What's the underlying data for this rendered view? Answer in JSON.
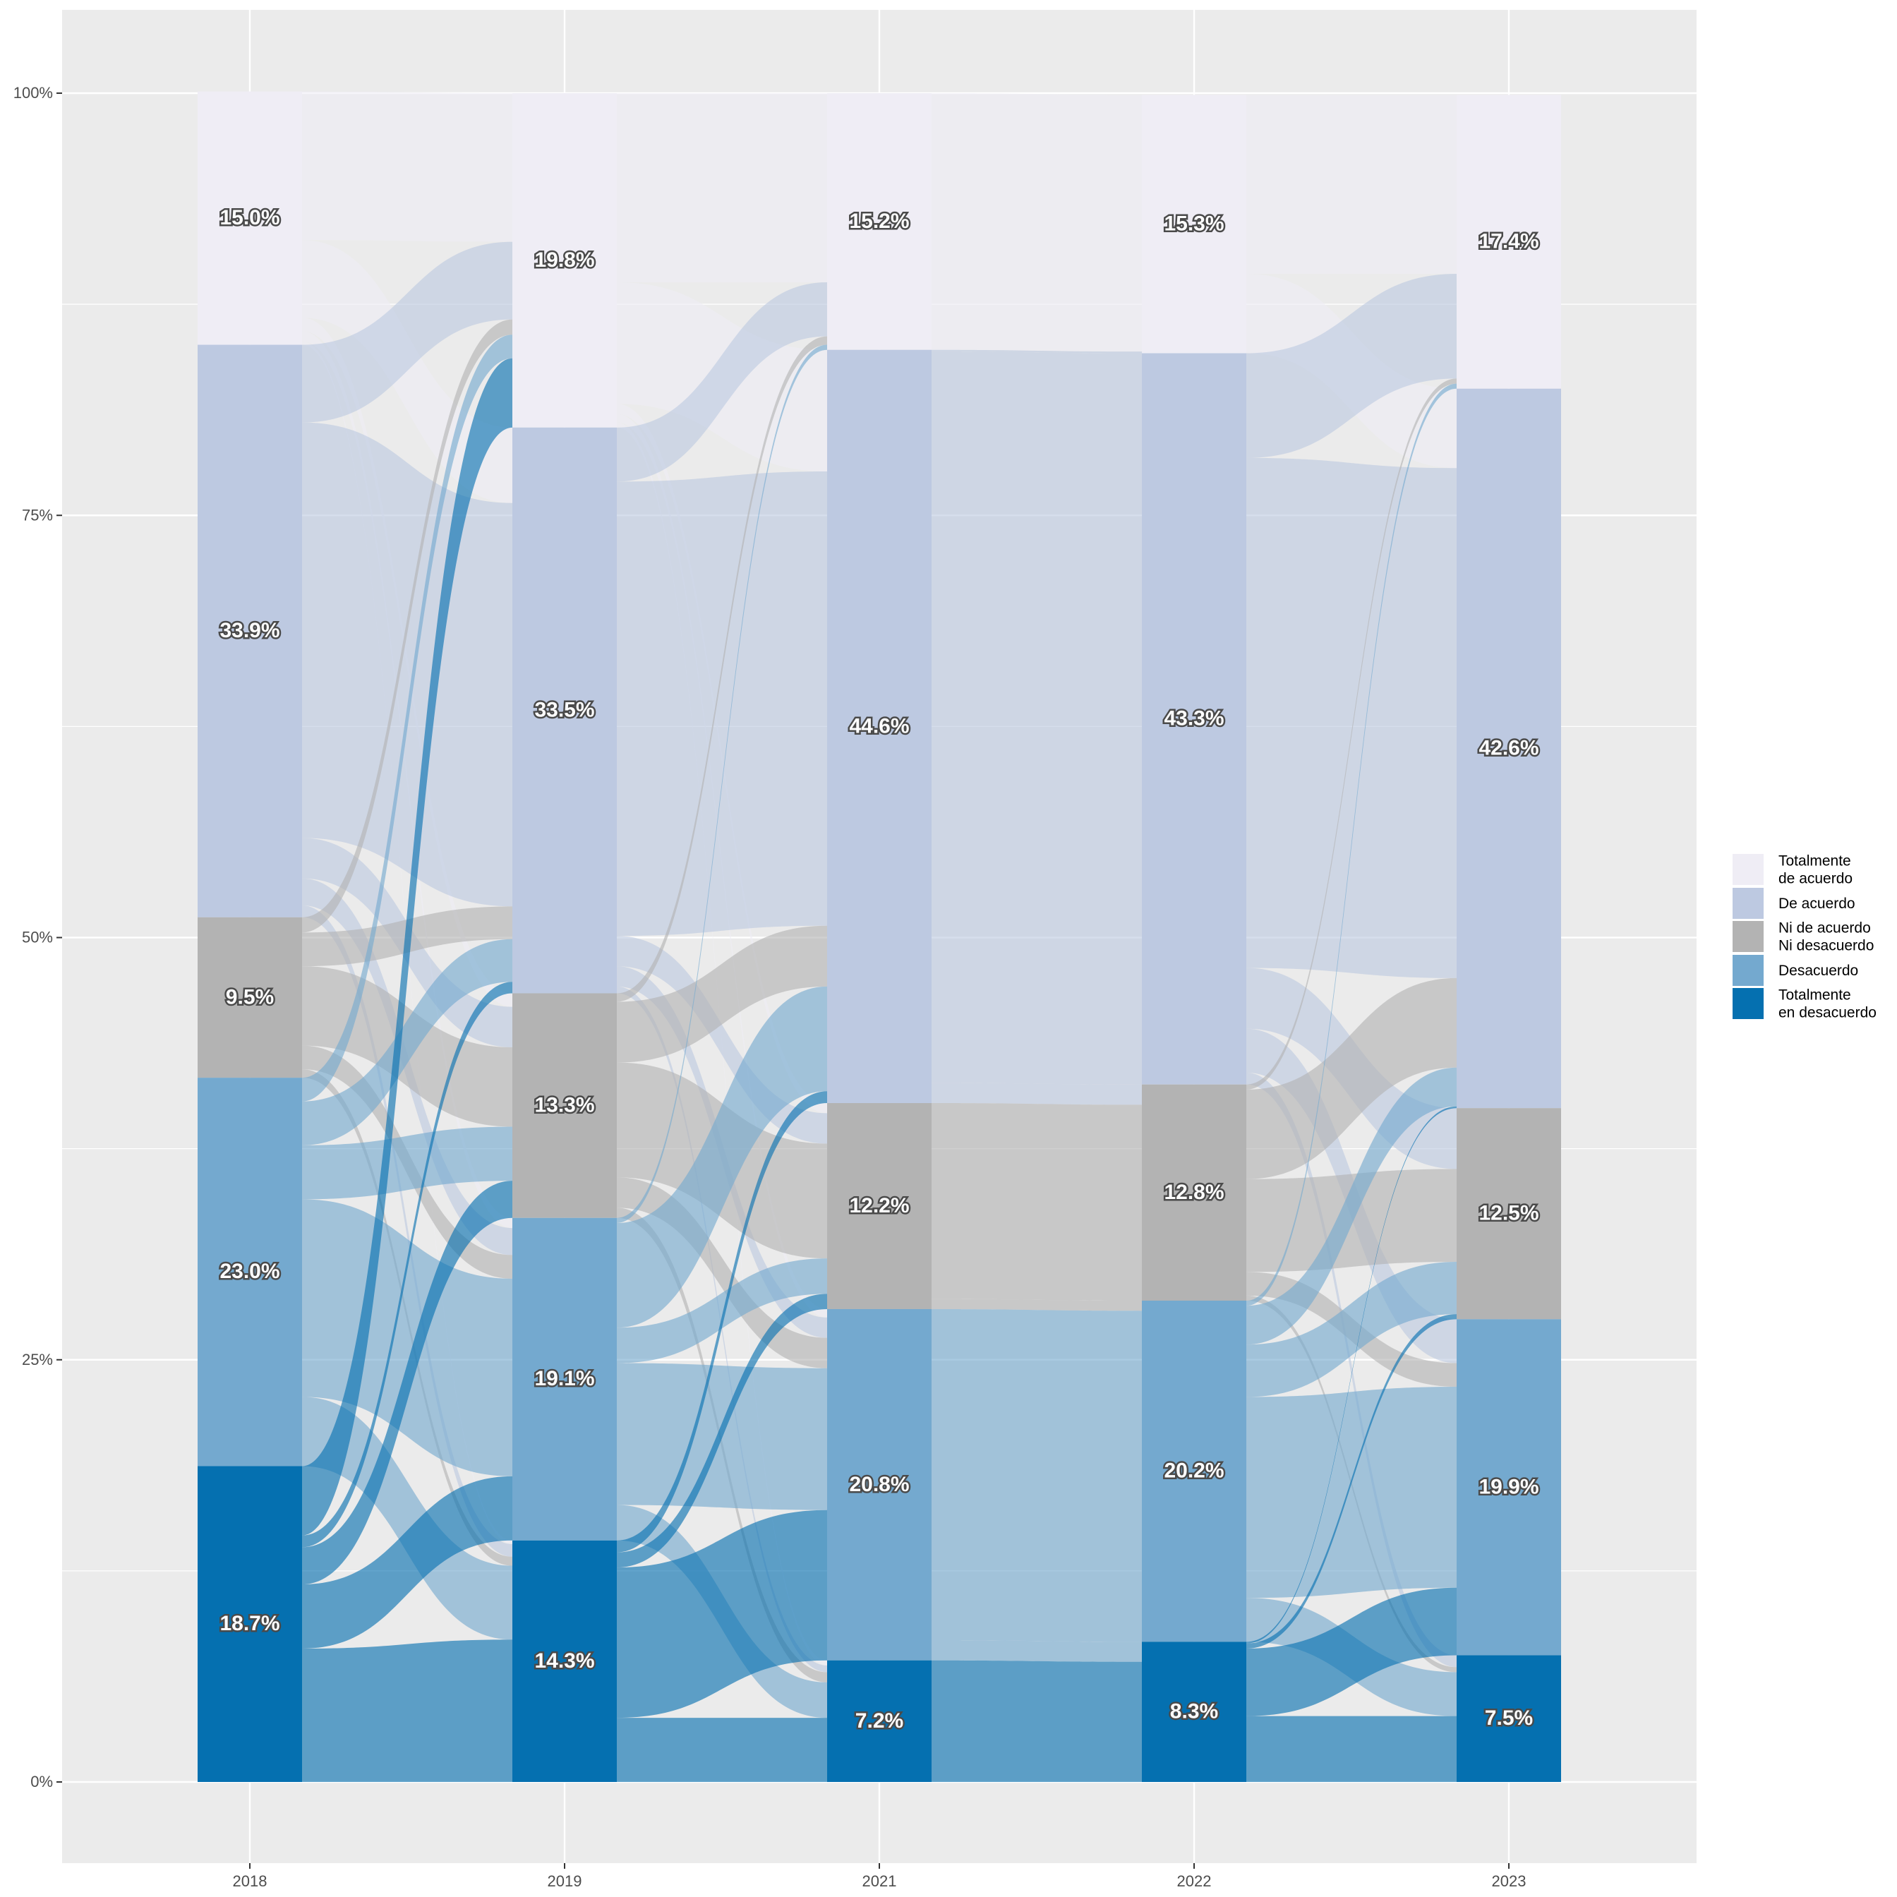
{
  "chart_data": {
    "type": "alluvial",
    "x": [
      "2018",
      "2019",
      "2021",
      "2022",
      "2023"
    ],
    "y_ticks": [
      "0%",
      "25%",
      "50%",
      "75%",
      "100%"
    ],
    "ylim": [
      0,
      100
    ],
    "grid": true,
    "legend_position": "right",
    "categories": [
      {
        "key": "ta",
        "name_lines": [
          "Totalmente",
          "de acuerdo"
        ],
        "color": "#efedf5"
      },
      {
        "key": "da",
        "name_lines": [
          "De acuerdo"
        ],
        "color": "#bdc9e1"
      },
      {
        "key": "ni",
        "name_lines": [
          "Ni de acuerdo",
          "Ni desacuerdo"
        ],
        "color": "#b3b3b3"
      },
      {
        "key": "de",
        "name_lines": [
          "Desacuerdo"
        ],
        "color": "#74a9cf"
      },
      {
        "key": "td",
        "name_lines": [
          "Totalmente",
          "en desacuerdo"
        ],
        "color": "#0570b0"
      }
    ],
    "series": [
      {
        "name": "Totalmente de acuerdo",
        "values": [
          15.0,
          19.8,
          15.2,
          15.3,
          17.4
        ],
        "labels": [
          "15.0%",
          "19.8%",
          "15.2%",
          "15.3%",
          "17.4%"
        ]
      },
      {
        "name": "De acuerdo",
        "values": [
          33.9,
          33.5,
          44.6,
          43.3,
          42.6
        ],
        "labels": [
          "33.9%",
          "33.5%",
          "44.6%",
          "43.3%",
          "42.6%"
        ]
      },
      {
        "name": "Ni de acuerdo Ni desacuerdo",
        "values": [
          9.5,
          13.3,
          12.2,
          12.8,
          12.5
        ],
        "labels": [
          "9.5%",
          "13.3%",
          "12.2%",
          "12.8%",
          "12.5%"
        ]
      },
      {
        "name": "Desacuerdo",
        "values": [
          23.0,
          19.1,
          20.8,
          20.2,
          19.9
        ],
        "labels": [
          "23.0%",
          "19.1%",
          "20.8%",
          "20.2%",
          "19.9%"
        ]
      },
      {
        "name": "Totalmente en desacuerdo",
        "values": [
          18.7,
          14.3,
          7.2,
          8.3,
          7.5
        ],
        "labels": [
          "18.7%",
          "14.3%",
          "7.2%",
          "8.3%",
          "7.5%"
        ]
      }
    ],
    "flows": [
      [
        [
          8.8,
          4.6,
          0.8,
          0.6,
          0.2
        ],
        [
          4.6,
          24.6,
          2.4,
          1.6,
          0.7
        ],
        [
          0.9,
          2.0,
          4.7,
          1.4,
          0.5
        ],
        [
          1.4,
          2.6,
          3.2,
          11.7,
          4.1
        ],
        [
          4.1,
          0.7,
          2.2,
          3.8,
          7.9
        ]
      ],
      [
        [
          11.2,
          7.2,
          0.6,
          0.5,
          0.3
        ],
        [
          3.2,
          26.9,
          1.8,
          1.2,
          0.4
        ],
        [
          0.5,
          3.6,
          6.8,
          1.8,
          0.6
        ],
        [
          0.3,
          6.2,
          2.1,
          8.4,
          2.1
        ],
        [
          0.0,
          0.7,
          0.9,
          8.9,
          3.8
        ]
      ],
      [
        [
          15.2,
          0,
          0,
          0,
          0
        ],
        [
          0.1,
          43.3,
          1.2,
          0,
          0
        ],
        [
          0,
          0,
          11.6,
          0.6,
          0
        ],
        [
          0,
          0,
          0,
          19.6,
          1.2
        ],
        [
          0,
          0,
          0,
          0,
          7.2
        ]
      ],
      [
        [
          10.6,
          4.7,
          0,
          0,
          0
        ],
        [
          6.2,
          30.2,
          3.6,
          2.6,
          0.7
        ],
        [
          0.3,
          5.3,
          5.5,
          1.4,
          0.3
        ],
        [
          0.3,
          2.3,
          3.1,
          11.9,
          2.6
        ],
        [
          0,
          0.1,
          0.3,
          4.0,
          3.9
        ]
      ]
    ]
  }
}
